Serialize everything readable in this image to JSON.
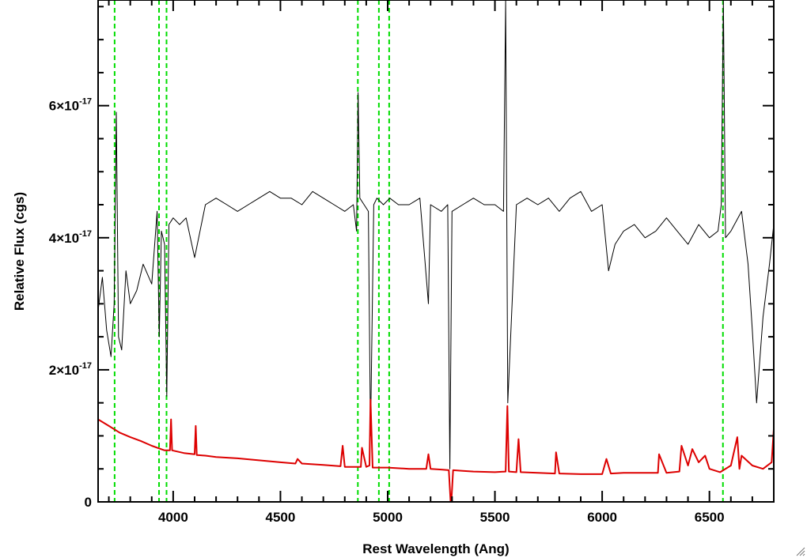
{
  "chart_data": {
    "type": "line",
    "xlabel": "Rest Wavelength (Ang)",
    "ylabel": "Relative Flux (cgs)",
    "xlim": [
      3650,
      6800
    ],
    "ylim": [
      0,
      7.6e-17
    ],
    "x_ticks": [
      4000,
      4500,
      5000,
      5500,
      6000,
      6500
    ],
    "x_tick_labels": [
      "4000",
      "4500",
      "5000",
      "5500",
      "6000",
      "6500"
    ],
    "y_ticks": [
      0,
      2e-17,
      4e-17,
      6e-17
    ],
    "y_tick_labels": [
      {
        "mantissa": "0",
        "exponent": ""
      },
      {
        "mantissa": "2×10",
        "exponent": "-17"
      },
      {
        "mantissa": "4×10",
        "exponent": "-17"
      },
      {
        "mantissa": "6×10",
        "exponent": "-17"
      }
    ],
    "reference_lines": {
      "color": "#00dd00",
      "style": "dashed",
      "x": [
        3727,
        3934,
        3969,
        4861,
        4959,
        5007,
        6563
      ]
    },
    "series": [
      {
        "color": "#000000",
        "x": [
          3650,
          3670,
          3690,
          3710,
          3725,
          3735,
          3745,
          3760,
          3780,
          3800,
          3830,
          3860,
          3900,
          3925,
          3935,
          3945,
          3960,
          3970,
          3980,
          4000,
          4030,
          4060,
          4100,
          4150,
          4200,
          4250,
          4300,
          4350,
          4400,
          4450,
          4500,
          4550,
          4600,
          4650,
          4700,
          4750,
          4800,
          4840,
          4855,
          4862,
          4870,
          4890,
          4910,
          4920,
          4935,
          4950,
          4980,
          5010,
          5050,
          5100,
          5150,
          5190,
          5200,
          5250,
          5280,
          5290,
          5300,
          5350,
          5400,
          5450,
          5500,
          5540,
          5550,
          5560,
          5600,
          5650,
          5700,
          5750,
          5800,
          5850,
          5900,
          5950,
          6000,
          6030,
          6060,
          6100,
          6150,
          6200,
          6250,
          6300,
          6350,
          6400,
          6450,
          6500,
          6540,
          6555,
          6565,
          6575,
          6600,
          6650,
          6680,
          6700,
          6720,
          6750,
          6780,
          6800
        ],
        "y": [
          2.9e-17,
          3.4e-17,
          2.6e-17,
          2.2e-17,
          3e-17,
          5.9e-17,
          2.5e-17,
          2.3e-17,
          3.5e-17,
          3e-17,
          3.2e-17,
          3.6e-17,
          3.3e-17,
          4.4e-17,
          2.5e-17,
          4.1e-17,
          3.9e-17,
          1.6e-17,
          4.2e-17,
          4.3e-17,
          4.2e-17,
          4.3e-17,
          3.7e-17,
          4.5e-17,
          4.6e-17,
          4.5e-17,
          4.4e-17,
          4.5e-17,
          4.6e-17,
          4.7e-17,
          4.6e-17,
          4.6e-17,
          4.5e-17,
          4.7e-17,
          4.6e-17,
          4.5e-17,
          4.4e-17,
          4.5e-17,
          4.1e-17,
          6.2e-17,
          4.6e-17,
          4.5e-17,
          4.4e-17,
          1e-17,
          4.5e-17,
          4.6e-17,
          4.5e-17,
          4.6e-17,
          4.5e-17,
          4.5e-17,
          4.6e-17,
          3e-17,
          4.5e-17,
          4.4e-17,
          4.5e-17,
          5e-18,
          4.4e-17,
          4.5e-17,
          4.6e-17,
          4.5e-17,
          4.5e-17,
          4.4e-17,
          7.6e-17,
          1.5e-17,
          4.5e-17,
          4.6e-17,
          4.5e-17,
          4.6e-17,
          4.4e-17,
          4.6e-17,
          4.7e-17,
          4.4e-17,
          4.5e-17,
          3.5e-17,
          3.9e-17,
          4.1e-17,
          4.2e-17,
          4e-17,
          4.1e-17,
          4.3e-17,
          4.1e-17,
          3.9e-17,
          4.2e-17,
          4e-17,
          4.1e-17,
          4.5e-17,
          7.6e-17,
          4e-17,
          4.1e-17,
          4.4e-17,
          3.6e-17,
          2.6e-17,
          1.5e-17,
          2.8e-17,
          3.6e-17,
          4.2e-17
        ]
      },
      {
        "color": "#dd0000",
        "x": [
          3650,
          3700,
          3750,
          3800,
          3850,
          3900,
          3960,
          3985,
          3990,
          3995,
          4050,
          4100,
          4105,
          4110,
          4150,
          4200,
          4300,
          4400,
          4500,
          4570,
          4580,
          4600,
          4700,
          4780,
          4790,
          4800,
          4850,
          4875,
          4880,
          4900,
          4915,
          4920,
          4930,
          5000,
          5100,
          5180,
          5190,
          5200,
          5250,
          5285,
          5295,
          5305,
          5350,
          5400,
          5500,
          5550,
          5558,
          5565,
          5600,
          5610,
          5620,
          5700,
          5780,
          5785,
          5800,
          5900,
          6000,
          6020,
          6040,
          6100,
          6200,
          6260,
          6265,
          6300,
          6360,
          6370,
          6400,
          6420,
          6450,
          6480,
          6500,
          6550,
          6600,
          6630,
          6640,
          6650,
          6700,
          6750,
          6790,
          6800
        ],
        "y": [
          1.25e-17,
          1.15e-17,
          1.05e-17,
          9.8e-18,
          9.2e-18,
          8.5e-18,
          7.8e-18,
          7.8e-18,
          1.25e-17,
          7.8e-18,
          7.4e-18,
          7.2e-18,
          1.15e-17,
          7.1e-18,
          7e-18,
          6.8e-18,
          6.6e-18,
          6.3e-18,
          6e-18,
          5.8e-18,
          6.5e-18,
          5.8e-18,
          5.6e-18,
          5.4e-18,
          8.5e-18,
          5.3e-18,
          5.3e-18,
          5.3e-18,
          8.2e-18,
          5.3e-18,
          5.5e-18,
          1.55e-17,
          5.2e-18,
          5.2e-18,
          5e-18,
          5e-18,
          7.2e-18,
          5e-18,
          4.9e-18,
          4.8e-18,
          -1e-18,
          4.8e-18,
          4.7e-18,
          4.6e-18,
          4.5e-18,
          4.6e-18,
          1.45e-17,
          4.6e-18,
          4.5e-18,
          9.5e-18,
          4.5e-18,
          4.4e-18,
          4.3e-18,
          7.5e-18,
          4.3e-18,
          4.2e-18,
          4.2e-18,
          6.5e-18,
          4.3e-18,
          4.4e-18,
          4.4e-18,
          4.4e-18,
          7.2e-18,
          4.4e-18,
          4.6e-18,
          8.5e-18,
          5.5e-18,
          8e-18,
          6e-18,
          7e-18,
          5e-18,
          4.5e-18,
          5.5e-18,
          9.8e-18,
          5e-18,
          7e-18,
          5.5e-18,
          5e-18,
          6e-18,
          1.1e-17
        ]
      }
    ]
  }
}
